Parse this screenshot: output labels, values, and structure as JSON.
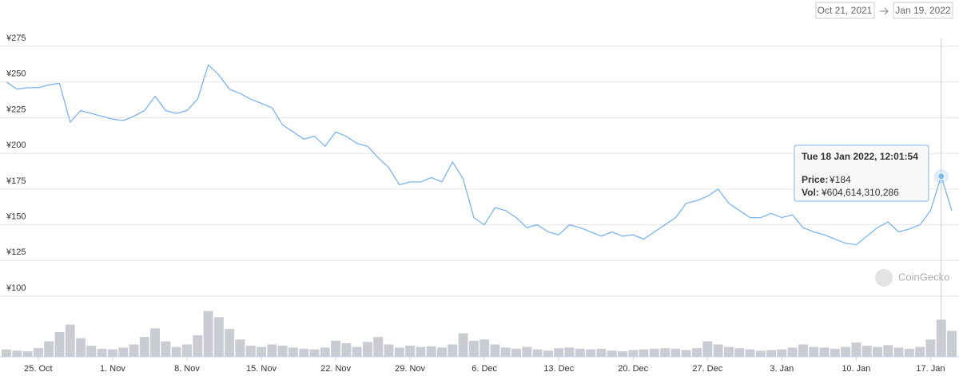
{
  "chart_data": {
    "type": "line",
    "range": {
      "from": "Oct 21, 2021",
      "to": "Jan 19, 2022"
    },
    "watermark": "CoinGecko",
    "x": [
      "2021-10-22",
      "2021-10-23",
      "2021-10-24",
      "2021-10-25",
      "2021-10-26",
      "2021-10-27",
      "2021-10-28",
      "2021-10-29",
      "2021-10-30",
      "2021-10-31",
      "2021-11-01",
      "2021-11-02",
      "2021-11-03",
      "2021-11-04",
      "2021-11-05",
      "2021-11-06",
      "2021-11-07",
      "2021-11-08",
      "2021-11-09",
      "2021-11-10",
      "2021-11-11",
      "2021-11-12",
      "2021-11-13",
      "2021-11-14",
      "2021-11-15",
      "2021-11-16",
      "2021-11-17",
      "2021-11-18",
      "2021-11-19",
      "2021-11-20",
      "2021-11-21",
      "2021-11-22",
      "2021-11-23",
      "2021-11-24",
      "2021-11-25",
      "2021-11-26",
      "2021-11-27",
      "2021-11-28",
      "2021-11-29",
      "2021-11-30",
      "2021-12-01",
      "2021-12-02",
      "2021-12-03",
      "2021-12-04",
      "2021-12-05",
      "2021-12-06",
      "2021-12-07",
      "2021-12-08",
      "2021-12-09",
      "2021-12-10",
      "2021-12-11",
      "2021-12-12",
      "2021-12-13",
      "2021-12-14",
      "2021-12-15",
      "2021-12-16",
      "2021-12-17",
      "2021-12-18",
      "2021-12-19",
      "2021-12-20",
      "2021-12-21",
      "2021-12-22",
      "2021-12-23",
      "2021-12-24",
      "2021-12-25",
      "2021-12-26",
      "2021-12-27",
      "2021-12-28",
      "2021-12-29",
      "2021-12-30",
      "2021-12-31",
      "2022-01-01",
      "2022-01-02",
      "2022-01-03",
      "2022-01-04",
      "2022-01-05",
      "2022-01-06",
      "2022-01-07",
      "2022-01-08",
      "2022-01-09",
      "2022-01-10",
      "2022-01-11",
      "2022-01-12",
      "2022-01-13",
      "2022-01-14",
      "2022-01-15",
      "2022-01-16",
      "2022-01-17",
      "2022-01-18",
      "2022-01-19"
    ],
    "values": [
      250,
      245,
      246,
      246,
      248,
      249,
      222,
      230,
      228,
      226,
      224,
      223,
      226,
      230,
      240,
      230,
      228,
      230,
      238,
      262,
      255,
      245,
      242,
      238,
      235,
      232,
      220,
      215,
      210,
      212,
      205,
      215,
      212,
      207,
      205,
      197,
      190,
      178,
      180,
      180,
      183,
      180,
      194,
      182,
      155,
      150,
      162,
      160,
      155,
      148,
      150,
      145,
      143,
      150,
      148,
      145,
      142,
      145,
      142,
      143,
      140,
      145,
      150,
      155,
      165,
      167,
      170,
      175,
      165,
      160,
      155,
      155,
      158,
      155,
      157,
      148,
      145,
      143,
      140,
      137,
      136,
      142,
      148,
      152,
      145,
      147,
      150,
      160,
      184,
      160
    ],
    "color": "#7cb5ec",
    "volumes": [
      120000000000.0,
      100000000000.0,
      90000000000.0,
      140000000000.0,
      250000000000.0,
      400000000000.0,
      520000000000.0,
      300000000000.0,
      180000000000.0,
      130000000000.0,
      120000000000.0,
      150000000000.0,
      200000000000.0,
      320000000000.0,
      460000000000.0,
      250000000000.0,
      160000000000.0,
      200000000000.0,
      350000000000.0,
      740000000000.0,
      640000000000.0,
      450000000000.0,
      280000000000.0,
      180000000000.0,
      160000000000.0,
      200000000000.0,
      180000000000.0,
      150000000000.0,
      130000000000.0,
      120000000000.0,
      150000000000.0,
      260000000000.0,
      220000000000.0,
      160000000000.0,
      240000000000.0,
      320000000000.0,
      200000000000.0,
      150000000000.0,
      180000000000.0,
      160000000000.0,
      170000000000.0,
      150000000000.0,
      200000000000.0,
      380000000000.0,
      260000000000.0,
      280000000000.0,
      200000000000.0,
      150000000000.0,
      130000000000.0,
      160000000000.0,
      120000000000.0,
      100000000000.0,
      140000000000.0,
      150000000000.0,
      130000000000.0,
      120000000000.0,
      130000000000.0,
      100000000000.0,
      90000000000.0,
      110000000000.0,
      120000000000.0,
      130000000000.0,
      140000000000.0,
      130000000000.0,
      110000000000.0,
      140000000000.0,
      250000000000.0,
      200000000000.0,
      160000000000.0,
      140000000000.0,
      120000000000.0,
      100000000000.0,
      110000000000.0,
      120000000000.0,
      150000000000.0,
      200000000000.0,
      160000000000.0,
      150000000000.0,
      130000000000.0,
      160000000000.0,
      230000000000.0,
      180000000000.0,
      160000000000.0,
      190000000000.0,
      150000000000.0,
      130000000000.0,
      160000000000.0,
      280000000000.0,
      600000000000.0,
      420000000000.0
    ],
    "volume_color": "#c9cdd3",
    "volume_lim": [
      0,
      760000000000.0
    ],
    "xlim": [
      "2021-10-22",
      "2022-01-19"
    ],
    "xticks": [
      {
        "value": "2021-10-25",
        "label": "25. Oct"
      },
      {
        "value": "2021-11-01",
        "label": "1. Nov"
      },
      {
        "value": "2021-11-08",
        "label": "8. Nov"
      },
      {
        "value": "2021-11-15",
        "label": "15. Nov"
      },
      {
        "value": "2021-11-22",
        "label": "22. Nov"
      },
      {
        "value": "2021-11-29",
        "label": "29. Nov"
      },
      {
        "value": "2021-12-06",
        "label": "6. Dec"
      },
      {
        "value": "2021-12-13",
        "label": "13. Dec"
      },
      {
        "value": "2021-12-20",
        "label": "20. Dec"
      },
      {
        "value": "2021-12-27",
        "label": "27. Dec"
      },
      {
        "value": "2022-01-03",
        "label": "3. Jan"
      },
      {
        "value": "2022-01-10",
        "label": "10. Jan"
      },
      {
        "value": "2022-01-17",
        "label": "17. Jan"
      }
    ],
    "ylim": [
      100,
      275
    ],
    "yticks": [
      {
        "value": 100,
        "label": "¥100"
      },
      {
        "value": 125,
        "label": "¥125"
      },
      {
        "value": 150,
        "label": "¥150"
      },
      {
        "value": 175,
        "label": "¥175"
      },
      {
        "value": 200,
        "label": "¥200"
      },
      {
        "value": 225,
        "label": "¥225"
      },
      {
        "value": 250,
        "label": "¥250"
      },
      {
        "value": 275,
        "label": "¥275"
      }
    ],
    "grid": true,
    "tooltip": {
      "title": "Tue 18 Jan 2022, 12:01:54",
      "price_label": "Price:",
      "price": "¥184",
      "vol_label": "Vol:",
      "vol": "¥604,614,310,286"
    }
  }
}
